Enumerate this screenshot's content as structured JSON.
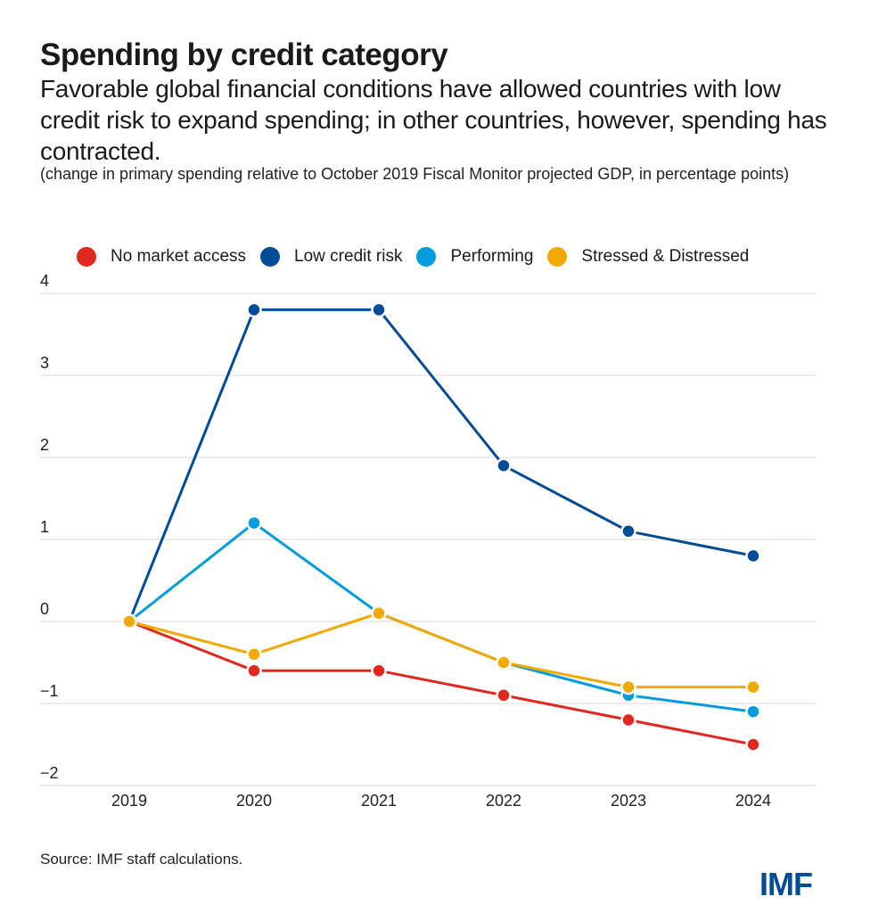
{
  "header": {
    "title": "Spending by credit category",
    "subtitle": "Favorable global financial conditions have allowed countries with low credit risk to expand spending; in other countries, however, spending has contracted.",
    "note": "(change in primary spending relative to October 2019 Fiscal Monitor projected GDP, in percentage points)"
  },
  "footer": {
    "source": "Source: IMF staff calculations.",
    "logo": "IMF"
  },
  "colors": {
    "no_market_access": "#E0281F",
    "low_credit_risk": "#004C97",
    "performing": "#009CDE",
    "stressed_distressed": "#F2A900",
    "grid": "#e6e6e6",
    "brand": "#004C97"
  },
  "chart_data": {
    "type": "line",
    "title": "Spending by credit category",
    "xlabel": "",
    "ylabel": "change in primary spending relative to October 2019 Fiscal Monitor projected GDP, in percentage points",
    "x": [
      "2019",
      "2020",
      "2021",
      "2022",
      "2023",
      "2024"
    ],
    "ylim": [
      -2,
      4
    ],
    "yticks": [
      4,
      3,
      2,
      1,
      0,
      -1,
      -2
    ],
    "ytick_labels": [
      "4",
      "3",
      "2",
      "1",
      "0",
      "−1",
      "−2"
    ],
    "grid": true,
    "legend_position": "top",
    "series": [
      {
        "name": "No market access",
        "color": "#E0281F",
        "values": [
          0,
          -0.6,
          -0.6,
          -0.9,
          -1.2,
          -1.5
        ]
      },
      {
        "name": "Low credit risk",
        "color": "#004C97",
        "values": [
          0,
          3.8,
          3.8,
          1.9,
          1.1,
          0.8
        ]
      },
      {
        "name": "Performing",
        "color": "#009CDE",
        "values": [
          0,
          1.2,
          0.1,
          -0.5,
          -0.9,
          -1.1
        ]
      },
      {
        "name": "Stressed & Distressed",
        "color": "#F2A900",
        "values": [
          0,
          -0.4,
          0.1,
          -0.5,
          -0.8,
          -0.8
        ]
      }
    ]
  }
}
